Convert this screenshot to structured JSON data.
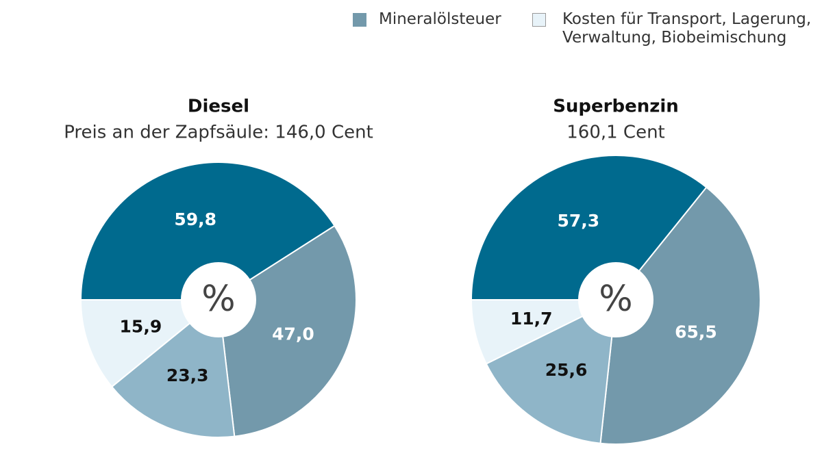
{
  "chart_data": [
    {
      "type": "pie",
      "title": "Diesel",
      "subtitle": "Preis an der Zapfsäule: 146,0 Cent",
      "center_label": "%",
      "categories": [
        null,
        "Mineralölsteuer",
        null,
        "Kosten für Transport, Lagerung, Verwaltung, Biobeimischung"
      ],
      "colors": [
        "#006a8e",
        "#7399ab",
        "#8fb5c8",
        "#e8f3f9"
      ],
      "values": [
        59.8,
        47.0,
        23.3,
        15.9
      ],
      "value_labels": [
        "59,8",
        "47,0",
        "23,3",
        "15,9"
      ]
    },
    {
      "type": "pie",
      "title": "Superbenzin",
      "subtitle": "160,1 Cent",
      "center_label": "%",
      "categories": [
        null,
        "Mineralölsteuer",
        null,
        "Kosten für Transport, Lagerung, Verwaltung, Biobeimischung"
      ],
      "colors": [
        "#006a8e",
        "#7399ab",
        "#8fb5c8",
        "#e8f3f9"
      ],
      "values": [
        57.3,
        65.5,
        25.6,
        11.7
      ],
      "value_labels": [
        "57,3",
        "65,5",
        "25,6",
        "11,7"
      ]
    }
  ]
}
